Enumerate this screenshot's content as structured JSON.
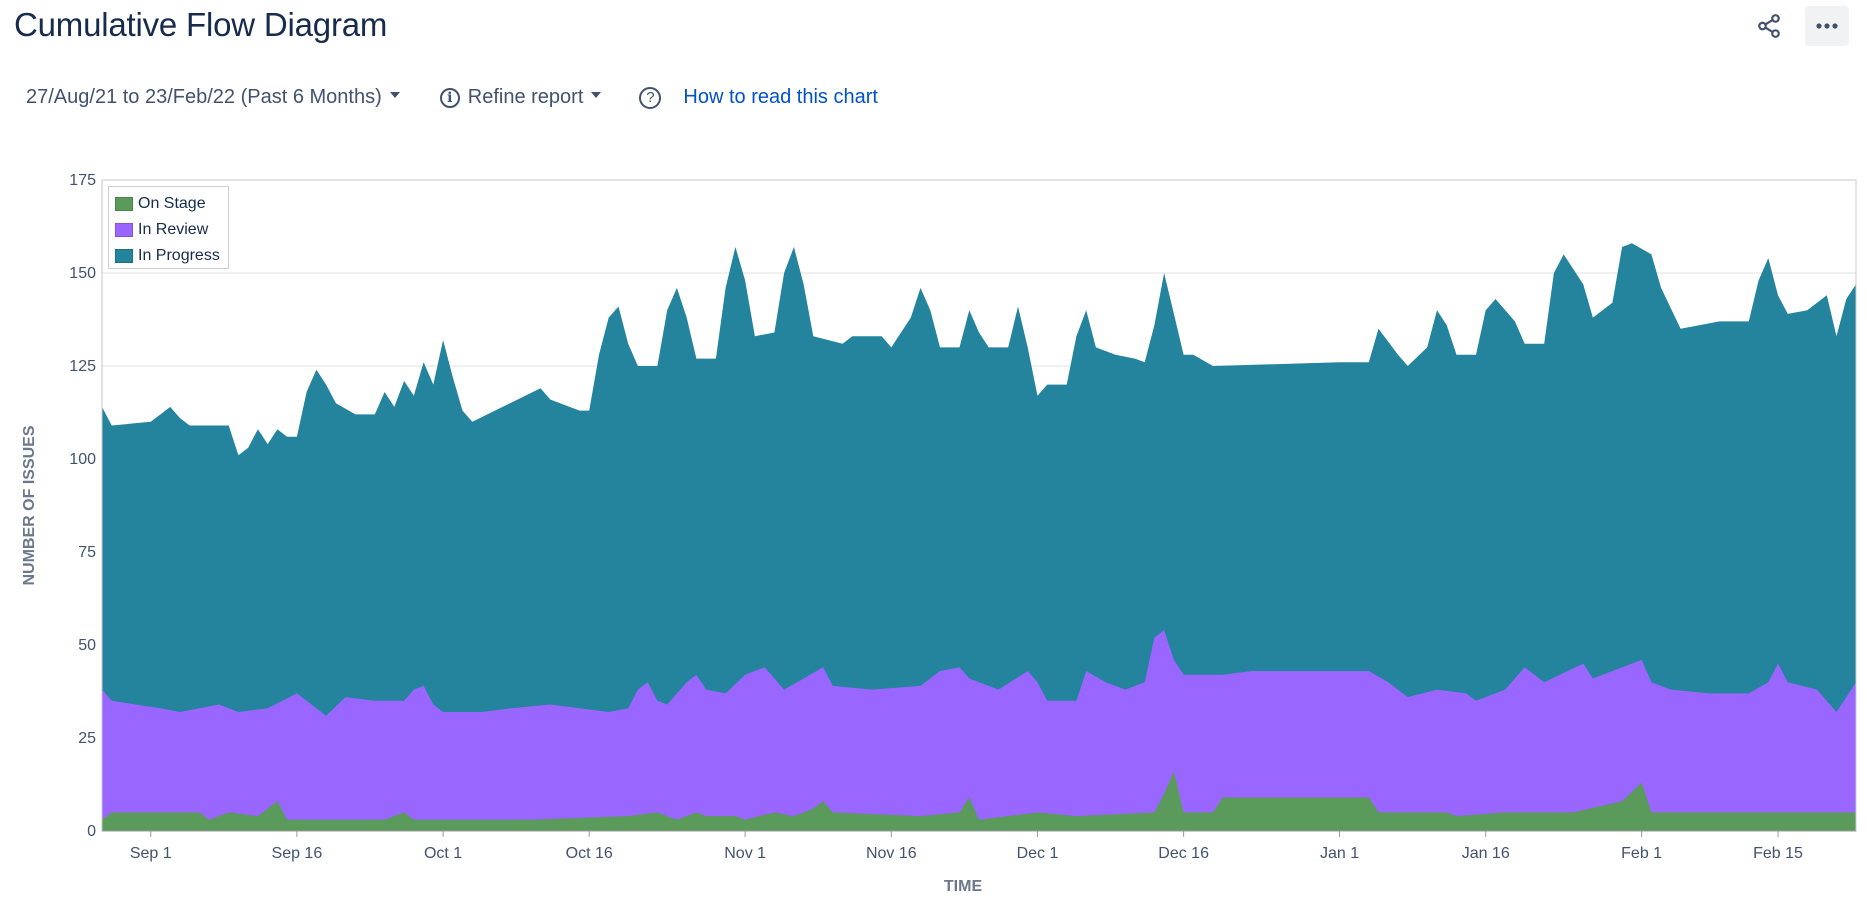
{
  "header": {
    "title": "Cumulative Flow Diagram"
  },
  "toolbar": {
    "date_range_label": "27/Aug/21 to 23/Feb/22 (Past 6 Months)",
    "refine_label": "Refine report",
    "help_link": "How to read this chart"
  },
  "icons": {
    "share": "share-icon",
    "more": "more-icon",
    "info": "info-icon",
    "help": "question-icon"
  },
  "chart_data": {
    "type": "area",
    "stacked": true,
    "xlabel": "TIME",
    "ylabel": "NUMBER OF ISSUES",
    "ylim": [
      0,
      175
    ],
    "yticks": [
      0,
      25,
      50,
      75,
      100,
      125,
      150,
      175
    ],
    "x_range": [
      "2021-08-27",
      "2022-02-23"
    ],
    "xticks": [
      "Sep 1",
      "Sep 16",
      "Oct 1",
      "Oct 16",
      "Nov 1",
      "Nov 16",
      "Dec 1",
      "Dec 16",
      "Jan 1",
      "Jan 16",
      "Feb 1",
      "Feb 15"
    ],
    "xtick_dates": [
      "2021-09-01",
      "2021-09-16",
      "2021-10-01",
      "2021-10-16",
      "2021-11-01",
      "2021-11-16",
      "2021-12-01",
      "2021-12-16",
      "2022-01-01",
      "2022-01-16",
      "2022-02-01",
      "2022-02-15"
    ],
    "grid": true,
    "legend_position": "top-left",
    "series": [
      {
        "name": "On Stage",
        "color": "#5a9a5a",
        "points": [
          [
            "2021-08-27",
            3
          ],
          [
            "2021-08-28",
            5
          ],
          [
            "2021-09-03",
            5
          ],
          [
            "2021-09-06",
            5
          ],
          [
            "2021-09-07",
            3
          ],
          [
            "2021-09-09",
            5
          ],
          [
            "2021-09-12",
            4
          ],
          [
            "2021-09-14",
            8
          ],
          [
            "2021-09-15",
            3
          ],
          [
            "2021-09-25",
            3
          ],
          [
            "2021-09-27",
            5
          ],
          [
            "2021-09-28",
            3
          ],
          [
            "2021-10-03",
            3
          ],
          [
            "2021-10-10",
            3
          ],
          [
            "2021-10-20",
            4
          ],
          [
            "2021-10-23",
            5
          ],
          [
            "2021-10-25",
            3
          ],
          [
            "2021-10-27",
            5
          ],
          [
            "2021-10-28",
            4
          ],
          [
            "2021-10-31",
            4
          ],
          [
            "2021-11-01",
            3
          ],
          [
            "2021-11-04",
            5
          ],
          [
            "2021-11-06",
            4
          ],
          [
            "2021-11-08",
            6
          ],
          [
            "2021-11-09",
            8
          ],
          [
            "2021-11-10",
            5
          ],
          [
            "2021-11-19",
            4
          ],
          [
            "2021-11-23",
            5
          ],
          [
            "2021-11-24",
            9
          ],
          [
            "2021-11-25",
            3
          ],
          [
            "2021-12-01",
            5
          ],
          [
            "2021-12-05",
            4
          ],
          [
            "2021-12-13",
            5
          ],
          [
            "2021-12-14",
            10
          ],
          [
            "2021-12-15",
            16
          ],
          [
            "2021-12-16",
            5
          ],
          [
            "2021-12-19",
            5
          ],
          [
            "2021-12-20",
            9
          ],
          [
            "2021-12-28",
            9
          ],
          [
            "2022-01-04",
            9
          ],
          [
            "2022-01-05",
            5
          ],
          [
            "2022-01-12",
            5
          ],
          [
            "2022-01-13",
            4
          ],
          [
            "2022-01-18",
            5
          ],
          [
            "2022-01-25",
            5
          ],
          [
            "2022-01-30",
            8
          ],
          [
            "2022-02-01",
            13
          ],
          [
            "2022-02-02",
            5
          ],
          [
            "2022-02-10",
            5
          ],
          [
            "2022-02-18",
            5
          ],
          [
            "2022-02-23",
            5
          ]
        ]
      },
      {
        "name": "In Review",
        "color": "#9966ff",
        "points": [
          [
            "2021-08-27",
            38
          ],
          [
            "2021-08-28",
            35
          ],
          [
            "2021-09-02",
            33
          ],
          [
            "2021-09-04",
            32
          ],
          [
            "2021-09-08",
            34
          ],
          [
            "2021-09-10",
            32
          ],
          [
            "2021-09-13",
            33
          ],
          [
            "2021-09-16",
            37
          ],
          [
            "2021-09-17",
            35
          ],
          [
            "2021-09-19",
            31
          ],
          [
            "2021-09-21",
            36
          ],
          [
            "2021-09-24",
            35
          ],
          [
            "2021-09-27",
            35
          ],
          [
            "2021-09-28",
            38
          ],
          [
            "2021-09-29",
            39
          ],
          [
            "2021-09-30",
            34
          ],
          [
            "2021-10-01",
            32
          ],
          [
            "2021-10-05",
            32
          ],
          [
            "2021-10-08",
            33
          ],
          [
            "2021-10-12",
            34
          ],
          [
            "2021-10-15",
            33
          ],
          [
            "2021-10-18",
            32
          ],
          [
            "2021-10-20",
            33
          ],
          [
            "2021-10-21",
            38
          ],
          [
            "2021-10-22",
            40
          ],
          [
            "2021-10-23",
            35
          ],
          [
            "2021-10-24",
            34
          ],
          [
            "2021-10-26",
            40
          ],
          [
            "2021-10-27",
            42
          ],
          [
            "2021-10-28",
            38
          ],
          [
            "2021-10-30",
            37
          ],
          [
            "2021-11-01",
            42
          ],
          [
            "2021-11-03",
            44
          ],
          [
            "2021-11-05",
            38
          ],
          [
            "2021-11-07",
            41
          ],
          [
            "2021-11-09",
            44
          ],
          [
            "2021-11-10",
            39
          ],
          [
            "2021-11-14",
            38
          ],
          [
            "2021-11-19",
            39
          ],
          [
            "2021-11-21",
            43
          ],
          [
            "2021-11-23",
            44
          ],
          [
            "2021-11-24",
            41
          ],
          [
            "2021-11-27",
            38
          ],
          [
            "2021-11-30",
            43
          ],
          [
            "2021-12-01",
            40
          ],
          [
            "2021-12-02",
            35
          ],
          [
            "2021-12-05",
            35
          ],
          [
            "2021-12-06",
            43
          ],
          [
            "2021-12-08",
            40
          ],
          [
            "2021-12-10",
            38
          ],
          [
            "2021-12-12",
            40
          ],
          [
            "2021-12-13",
            52
          ],
          [
            "2021-12-14",
            54
          ],
          [
            "2021-12-15",
            46
          ],
          [
            "2021-12-16",
            42
          ],
          [
            "2021-12-20",
            42
          ],
          [
            "2021-12-23",
            43
          ],
          [
            "2022-01-01",
            43
          ],
          [
            "2022-01-04",
            43
          ],
          [
            "2022-01-06",
            40
          ],
          [
            "2022-01-08",
            36
          ],
          [
            "2022-01-11",
            38
          ],
          [
            "2022-01-14",
            37
          ],
          [
            "2022-01-15",
            35
          ],
          [
            "2022-01-18",
            38
          ],
          [
            "2022-01-20",
            44
          ],
          [
            "2022-01-22",
            40
          ],
          [
            "2022-01-26",
            45
          ],
          [
            "2022-01-27",
            41
          ],
          [
            "2022-01-29",
            43
          ],
          [
            "2022-02-01",
            46
          ],
          [
            "2022-02-02",
            40
          ],
          [
            "2022-02-04",
            38
          ],
          [
            "2022-02-08",
            37
          ],
          [
            "2022-02-12",
            37
          ],
          [
            "2022-02-14",
            40
          ],
          [
            "2022-02-15",
            45
          ],
          [
            "2022-02-16",
            40
          ],
          [
            "2022-02-19",
            38
          ],
          [
            "2022-02-21",
            32
          ],
          [
            "2022-02-22",
            36
          ],
          [
            "2022-02-23",
            40
          ]
        ]
      },
      {
        "name": "In Progress",
        "color": "#24839d",
        "points": [
          [
            "2021-08-27",
            114
          ],
          [
            "2021-08-28",
            109
          ],
          [
            "2021-09-01",
            110
          ],
          [
            "2021-09-02",
            112
          ],
          [
            "2021-09-03",
            114
          ],
          [
            "2021-09-04",
            111
          ],
          [
            "2021-09-05",
            109
          ],
          [
            "2021-09-09",
            109
          ],
          [
            "2021-09-10",
            101
          ],
          [
            "2021-09-11",
            103
          ],
          [
            "2021-09-12",
            108
          ],
          [
            "2021-09-13",
            104
          ],
          [
            "2021-09-14",
            108
          ],
          [
            "2021-09-15",
            106
          ],
          [
            "2021-09-16",
            106
          ],
          [
            "2021-09-17",
            118
          ],
          [
            "2021-09-18",
            124
          ],
          [
            "2021-09-19",
            120
          ],
          [
            "2021-09-20",
            115
          ],
          [
            "2021-09-22",
            112
          ],
          [
            "2021-09-24",
            112
          ],
          [
            "2021-09-25",
            118
          ],
          [
            "2021-09-26",
            114
          ],
          [
            "2021-09-27",
            121
          ],
          [
            "2021-09-28",
            117
          ],
          [
            "2021-09-29",
            126
          ],
          [
            "2021-09-30",
            120
          ],
          [
            "2021-10-01",
            132
          ],
          [
            "2021-10-02",
            122
          ],
          [
            "2021-10-03",
            113
          ],
          [
            "2021-10-04",
            110
          ],
          [
            "2021-10-15",
            113
          ],
          [
            "2021-10-11",
            119
          ],
          [
            "2021-10-12",
            116
          ],
          [
            "2021-10-16",
            113
          ],
          [
            "2021-10-17",
            128
          ],
          [
            "2021-10-18",
            138
          ],
          [
            "2021-10-19",
            141
          ],
          [
            "2021-10-20",
            131
          ],
          [
            "2021-10-21",
            125
          ],
          [
            "2021-10-23",
            125
          ],
          [
            "2021-10-24",
            140
          ],
          [
            "2021-10-25",
            146
          ],
          [
            "2021-10-26",
            138
          ],
          [
            "2021-10-27",
            127
          ],
          [
            "2021-10-29",
            127
          ],
          [
            "2021-10-30",
            146
          ],
          [
            "2021-10-31",
            157
          ],
          [
            "2021-11-01",
            148
          ],
          [
            "2021-11-02",
            133
          ],
          [
            "2021-11-04",
            134
          ],
          [
            "2021-11-05",
            150
          ],
          [
            "2021-11-06",
            157
          ],
          [
            "2021-11-07",
            147
          ],
          [
            "2021-11-08",
            133
          ],
          [
            "2021-11-11",
            131
          ],
          [
            "2021-11-12",
            133
          ],
          [
            "2021-11-15",
            133
          ],
          [
            "2021-11-16",
            130
          ],
          [
            "2021-11-18",
            138
          ],
          [
            "2021-11-19",
            146
          ],
          [
            "2021-11-20",
            140
          ],
          [
            "2021-11-21",
            130
          ],
          [
            "2021-11-23",
            130
          ],
          [
            "2021-11-24",
            140
          ],
          [
            "2021-11-25",
            134
          ],
          [
            "2021-11-26",
            130
          ],
          [
            "2021-11-28",
            130
          ],
          [
            "2021-11-29",
            141
          ],
          [
            "2021-11-30",
            130
          ],
          [
            "2021-12-01",
            117
          ],
          [
            "2021-12-02",
            120
          ],
          [
            "2021-12-04",
            120
          ],
          [
            "2021-12-05",
            133
          ],
          [
            "2021-12-06",
            140
          ],
          [
            "2021-12-07",
            130
          ],
          [
            "2021-12-09",
            128
          ],
          [
            "2021-12-11",
            127
          ],
          [
            "2021-12-12",
            126
          ],
          [
            "2021-12-13",
            136
          ],
          [
            "2021-12-14",
            150
          ],
          [
            "2021-12-15",
            139
          ],
          [
            "2021-12-16",
            128
          ],
          [
            "2021-12-17",
            128
          ],
          [
            "2021-12-19",
            125
          ],
          [
            "2022-01-01",
            126
          ],
          [
            "2022-01-04",
            126
          ],
          [
            "2022-01-05",
            135
          ],
          [
            "2022-01-07",
            128
          ],
          [
            "2022-01-08",
            125
          ],
          [
            "2022-01-10",
            130
          ],
          [
            "2022-01-11",
            140
          ],
          [
            "2022-01-12",
            136
          ],
          [
            "2022-01-13",
            128
          ],
          [
            "2022-01-15",
            128
          ],
          [
            "2022-01-16",
            140
          ],
          [
            "2022-01-17",
            143
          ],
          [
            "2022-01-19",
            137
          ],
          [
            "2022-01-20",
            131
          ],
          [
            "2022-01-22",
            131
          ],
          [
            "2022-01-23",
            150
          ],
          [
            "2022-01-24",
            155
          ],
          [
            "2022-01-26",
            147
          ],
          [
            "2022-01-27",
            138
          ],
          [
            "2022-01-29",
            142
          ],
          [
            "2022-01-30",
            157
          ],
          [
            "2022-01-31",
            158
          ],
          [
            "2022-02-02",
            155
          ],
          [
            "2022-02-03",
            146
          ],
          [
            "2022-02-05",
            135
          ],
          [
            "2022-02-09",
            137
          ],
          [
            "2022-02-12",
            137
          ],
          [
            "2022-02-13",
            148
          ],
          [
            "2022-02-14",
            154
          ],
          [
            "2022-02-15",
            144
          ],
          [
            "2022-02-16",
            139
          ],
          [
            "2022-02-18",
            140
          ],
          [
            "2022-02-20",
            144
          ],
          [
            "2022-02-21",
            133
          ],
          [
            "2022-02-22",
            143
          ],
          [
            "2022-02-23",
            147
          ]
        ]
      }
    ]
  }
}
